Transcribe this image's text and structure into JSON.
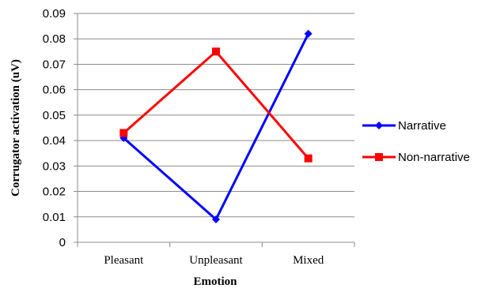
{
  "chart_data": {
    "type": "line",
    "categories": [
      "Pleasant",
      "Unpleasant",
      "Mixed"
    ],
    "series": [
      {
        "name": "Narrative",
        "values": [
          0.041,
          0.009,
          0.082
        ],
        "color": "#0000ff",
        "marker": "diamond"
      },
      {
        "name": "Non-narrative",
        "values": [
          0.043,
          0.075,
          0.033
        ],
        "color": "#ff0000",
        "marker": "square"
      }
    ],
    "xlabel": "Emotion",
    "ylabel": "Corrugator activation (uV)",
    "ylim": [
      0,
      0.09
    ],
    "yticks": [
      "0",
      "0.01",
      "0.02",
      "0.03",
      "0.04",
      "0.05",
      "0.06",
      "0.07",
      "0.08",
      "0.09"
    ],
    "grid": true,
    "legend_position": "right"
  }
}
